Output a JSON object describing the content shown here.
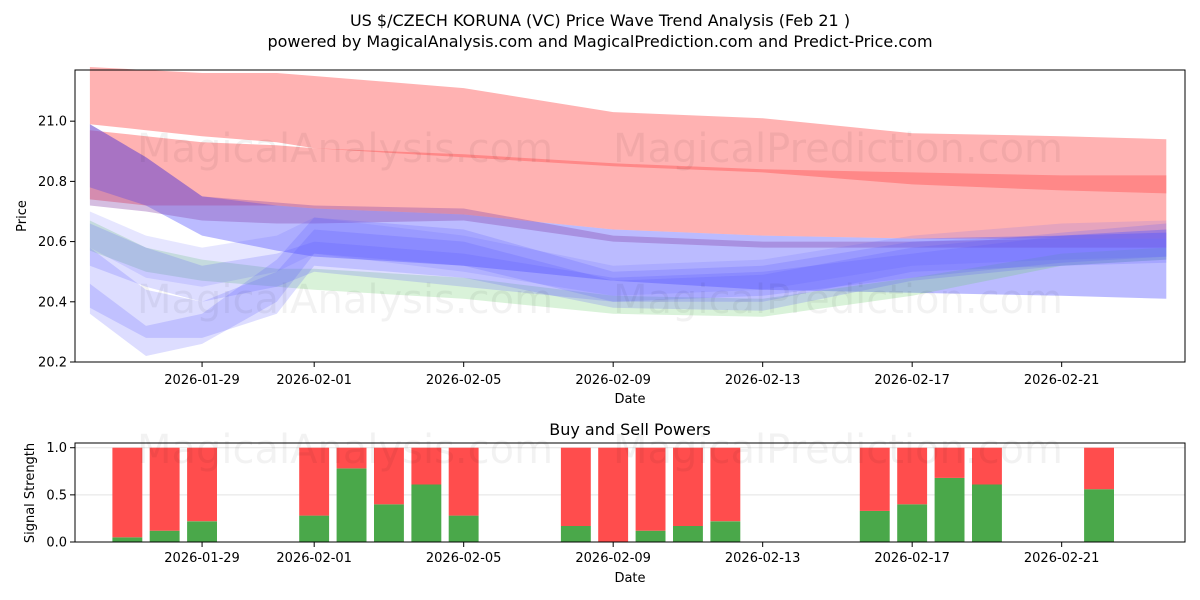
{
  "title": "US $/CZECH KORUNA (VC) Price Wave Trend Analysis (Feb 21 )",
  "subtitle": "powered by MagicalAnalysis.com and MagicalPrediction.com and Predict-Price.com",
  "watermarks": [
    "MagicalAnalysis.com",
    "MagicalPrediction.com"
  ],
  "colors": {
    "red": "#ff5555",
    "blue": "#5555ff",
    "green": "#66cc66",
    "purple": "#8844aa",
    "buy": "#4aa84a",
    "sell": "#ff4d4d"
  },
  "chart_data": [
    {
      "type": "area",
      "title": "",
      "xlabel": "Date",
      "ylabel": "Price",
      "ylim": [
        20.2,
        21.17
      ],
      "yticks": [
        20.2,
        20.4,
        20.6,
        20.8,
        21.0
      ],
      "ytick_labels": [
        "20.2",
        "20.4",
        "20.6",
        "20.8",
        "21.0"
      ],
      "xticks": [
        "2026-01-29",
        "2026-02-01",
        "2026-02-05",
        "2026-02-09",
        "2026-02-13",
        "2026-02-17",
        "2026-02-21"
      ],
      "xtick_days": [
        2,
        5,
        9,
        13,
        17,
        21,
        25
      ],
      "xlim": [
        -1.4,
        28.3
      ],
      "x_days": [
        -1,
        0.5,
        2,
        4,
        5,
        9,
        13,
        17,
        21,
        25,
        27.8
      ],
      "bands": [
        {
          "name": "red-upper",
          "color": "red",
          "opacity": 0.45,
          "lower": [
            20.99,
            20.97,
            20.95,
            20.93,
            20.91,
            20.88,
            20.85,
            20.83,
            20.79,
            20.77,
            20.76
          ],
          "upper": [
            21.18,
            21.17,
            21.16,
            21.16,
            21.15,
            21.11,
            21.03,
            21.01,
            20.96,
            20.95,
            20.94
          ]
        },
        {
          "name": "red-lower",
          "color": "red",
          "opacity": 0.45,
          "lower": [
            20.74,
            20.72,
            20.72,
            20.72,
            20.71,
            20.69,
            20.64,
            20.62,
            20.61,
            20.61,
            20.61
          ],
          "upper": [
            20.97,
            20.95,
            20.93,
            20.92,
            20.91,
            20.89,
            20.86,
            20.84,
            20.83,
            20.82,
            20.82
          ]
        },
        {
          "name": "blue-long",
          "color": "blue",
          "opacity": 0.4,
          "lower": [
            20.78,
            20.72,
            20.62,
            20.57,
            20.55,
            20.52,
            20.47,
            20.44,
            20.43,
            20.42,
            20.41
          ],
          "upper": [
            20.99,
            20.88,
            20.75,
            20.72,
            20.71,
            20.69,
            20.64,
            20.62,
            20.61,
            20.62,
            20.63
          ]
        },
        {
          "name": "purple-mid",
          "color": "purple",
          "opacity": 0.35,
          "lower": [
            20.72,
            20.7,
            20.67,
            20.66,
            20.66,
            20.67,
            20.6,
            20.58,
            20.58,
            20.58,
            20.58
          ],
          "upper": [
            20.99,
            20.88,
            20.75,
            20.73,
            20.72,
            20.71,
            20.62,
            20.6,
            20.6,
            20.61,
            20.61
          ]
        },
        {
          "name": "green",
          "color": "green",
          "opacity": 0.25,
          "lower": [
            20.57,
            20.5,
            20.47,
            20.45,
            20.44,
            20.41,
            20.36,
            20.35,
            20.42,
            20.52,
            20.54
          ],
          "upper": [
            20.67,
            20.58,
            20.54,
            20.51,
            20.51,
            20.48,
            20.42,
            20.41,
            20.48,
            20.56,
            20.58
          ]
        },
        {
          "name": "blue-2",
          "color": "blue",
          "opacity": 0.2,
          "lower": [
            20.52,
            20.45,
            20.4,
            20.45,
            20.5,
            20.45,
            20.4,
            20.42,
            20.48,
            20.53,
            20.55
          ],
          "upper": [
            20.66,
            20.58,
            20.52,
            20.56,
            20.6,
            20.56,
            20.48,
            20.5,
            20.56,
            20.62,
            20.64
          ]
        },
        {
          "name": "blue-3",
          "color": "blue",
          "opacity": 0.2,
          "lower": [
            20.38,
            20.28,
            20.28,
            20.36,
            20.52,
            20.48,
            20.38,
            20.37,
            20.47,
            20.52,
            20.54
          ],
          "upper": [
            20.58,
            20.44,
            20.4,
            20.5,
            20.64,
            20.6,
            20.47,
            20.49,
            20.58,
            20.63,
            20.66
          ]
        },
        {
          "name": "blue-4",
          "color": "blue",
          "opacity": 0.2,
          "lower": [
            20.36,
            20.22,
            20.26,
            20.4,
            20.56,
            20.52,
            20.4,
            20.4,
            20.5,
            20.52,
            20.53
          ],
          "upper": [
            20.46,
            20.32,
            20.36,
            20.54,
            20.68,
            20.64,
            20.5,
            20.52,
            20.6,
            20.62,
            20.64
          ]
        },
        {
          "name": "blue-5",
          "color": "blue",
          "opacity": 0.15,
          "lower": [
            20.58,
            20.48,
            20.45,
            20.5,
            20.56,
            20.5,
            20.42,
            20.44,
            20.52,
            20.54,
            20.55
          ],
          "upper": [
            20.7,
            20.62,
            20.58,
            20.62,
            20.68,
            20.62,
            20.52,
            20.54,
            20.62,
            20.66,
            20.67
          ]
        }
      ]
    },
    {
      "type": "bar",
      "title": "Buy and Sell Powers",
      "xlabel": "Date",
      "ylabel": "Signal Strength",
      "ylim": [
        0,
        1.05
      ],
      "yticks": [
        0,
        0.5,
        1
      ],
      "ytick_labels": [
        "0.0",
        "0.5",
        "1.0"
      ],
      "xticks": [
        "2026-01-29",
        "2026-02-01",
        "2026-02-05",
        "2026-02-09",
        "2026-02-13",
        "2026-02-17",
        "2026-02-21"
      ],
      "xtick_days": [
        2,
        5,
        9,
        13,
        17,
        21,
        25
      ],
      "xlim": [
        -1.4,
        28.3
      ],
      "days": [
        0,
        1,
        2,
        5,
        6,
        7,
        8,
        9,
        12,
        13,
        14,
        15,
        16,
        20,
        21,
        22,
        23,
        26
      ],
      "series": [
        {
          "name": "Buy",
          "color": "buy",
          "values": [
            0.05,
            0.12,
            0.22,
            0.28,
            0.78,
            0.4,
            0.61,
            0.28,
            0.17,
            0.0,
            0.12,
            0.17,
            0.22,
            0.33,
            0.4,
            0.68,
            0.61,
            0.56
          ]
        },
        {
          "name": "Sell",
          "color": "sell",
          "values": [
            0.95,
            0.88,
            0.78,
            0.72,
            0.22,
            0.6,
            0.39,
            0.72,
            0.83,
            1.0,
            0.88,
            0.83,
            0.78,
            0.67,
            0.6,
            0.32,
            0.39,
            0.44
          ]
        }
      ]
    }
  ]
}
